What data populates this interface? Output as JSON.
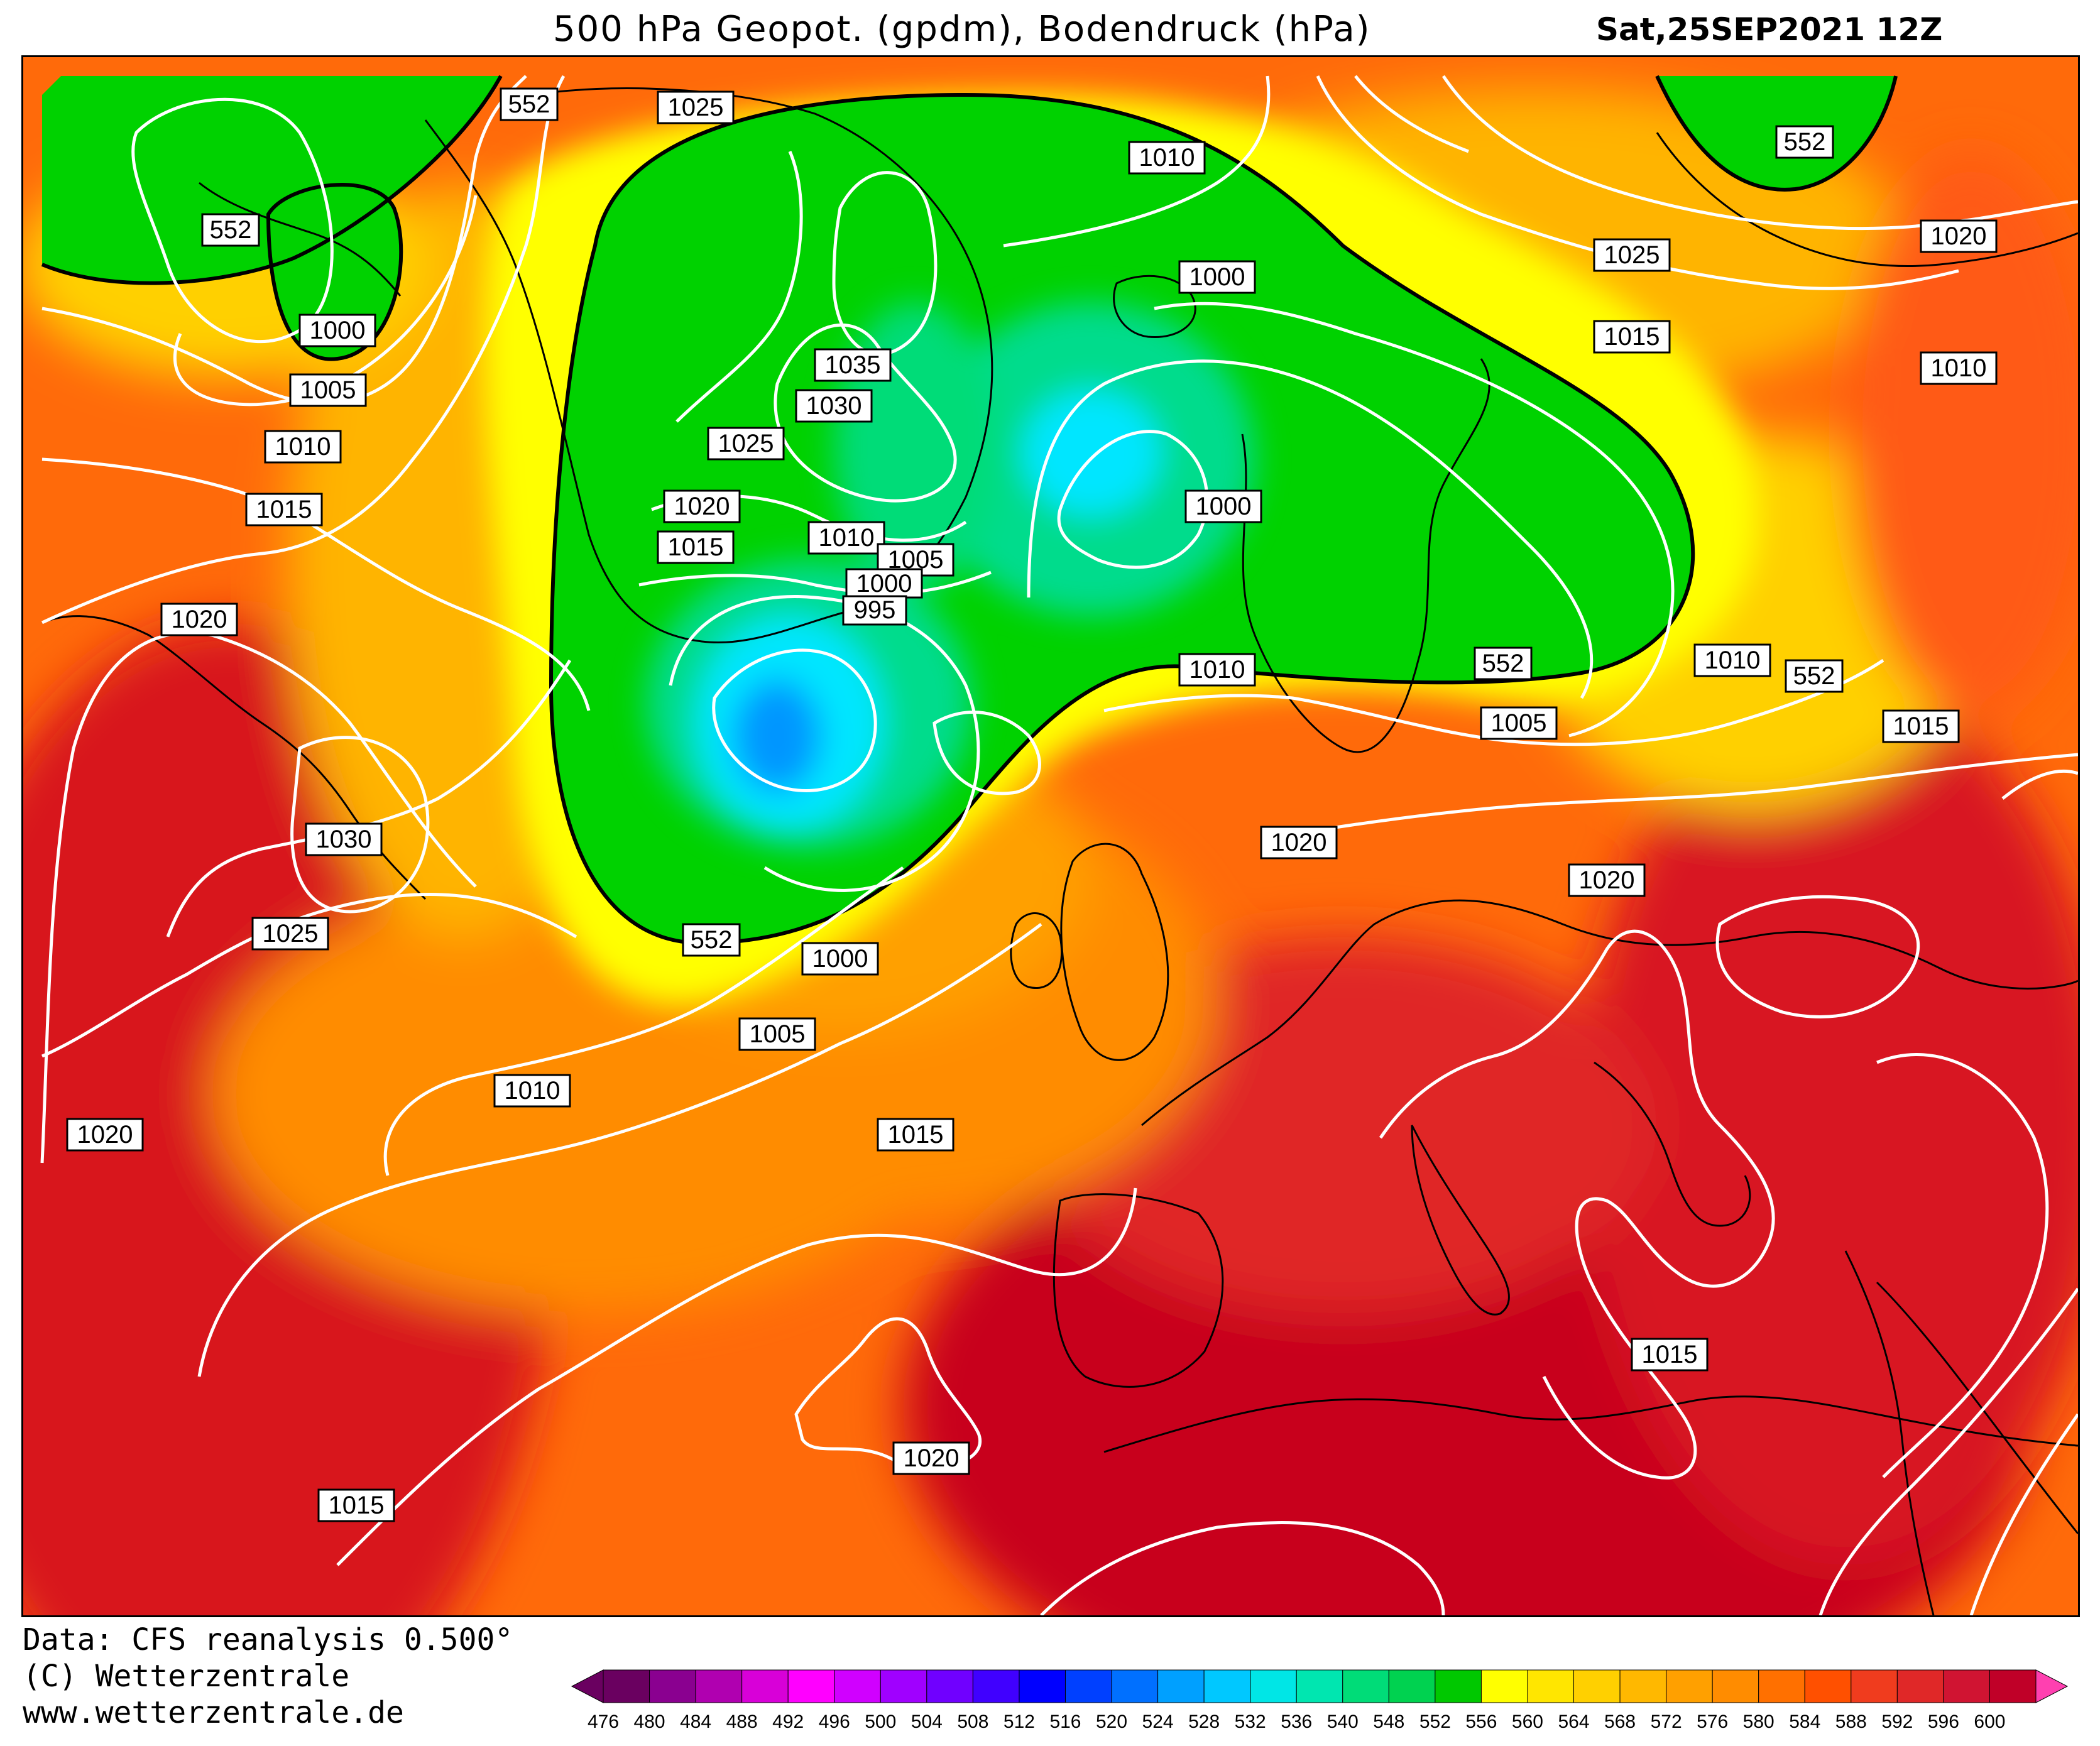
{
  "header": {
    "title": "500 hPa Geopot. (gpdm), Bodendruck (hPa)",
    "datetime": "Sat,25SEP2021 12Z"
  },
  "footer": {
    "data_source": "Data: CFS reanalysis 0.500°",
    "copyright": "(C) Wetterzentrale",
    "website": "www.wetterzentrale.de"
  },
  "colorbar": {
    "ticks": [
      "476",
      "480",
      "484",
      "488",
      "492",
      "496",
      "500",
      "504",
      "508",
      "512",
      "516",
      "520",
      "524",
      "528",
      "532",
      "536",
      "540",
      "548",
      "552",
      "556",
      "560",
      "564",
      "568",
      "572",
      "576",
      "580",
      "584",
      "588",
      "592",
      "596",
      "600"
    ],
    "colors": [
      "#6a0060",
      "#8a0090",
      "#b000b0",
      "#d800d8",
      "#ff00ff",
      "#d000ff",
      "#a000ff",
      "#7000ff",
      "#4000ff",
      "#0000ff",
      "#0040ff",
      "#0070ff",
      "#00a0ff",
      "#00c8ff",
      "#00e6e6",
      "#00e6b0",
      "#00dc78",
      "#00d250",
      "#00c800",
      "#ffff00",
      "#ffe600",
      "#ffd000",
      "#ffb800",
      "#ffa000",
      "#ff8c00",
      "#ff7000",
      "#ff5000",
      "#f03c1e",
      "#e02828",
      "#d01432",
      "#c00028"
    ]
  },
  "map_colors": {
    "deep_red": "#c8001e",
    "red": "#e6321e",
    "orange_red": "#ff5a14",
    "orange": "#ff8c00",
    "light_orange": "#ffb400",
    "yellow": "#ffff00",
    "green": "#00d200",
    "teal": "#00dc8c",
    "cyan": "#00e6ff",
    "blue": "#0096ff"
  },
  "pressure_labels": [
    "1025",
    "1010",
    "1025",
    "1020",
    "1015",
    "1010",
    "1000",
    "1005",
    "1010",
    "1015",
    "1020",
    "1030",
    "1025",
    "1020",
    "1035",
    "1030",
    "1025",
    "1020",
    "1015",
    "1010",
    "1005",
    "1000",
    "995",
    "1000",
    "1000",
    "1010",
    "1005",
    "1015",
    "1020",
    "1015",
    "1020",
    "1010",
    "1015",
    "1005",
    "1000",
    "1010",
    "1020",
    "1015"
  ],
  "geopotential_labels": [
    "552",
    "552",
    "552",
    "552",
    "552",
    "552"
  ]
}
